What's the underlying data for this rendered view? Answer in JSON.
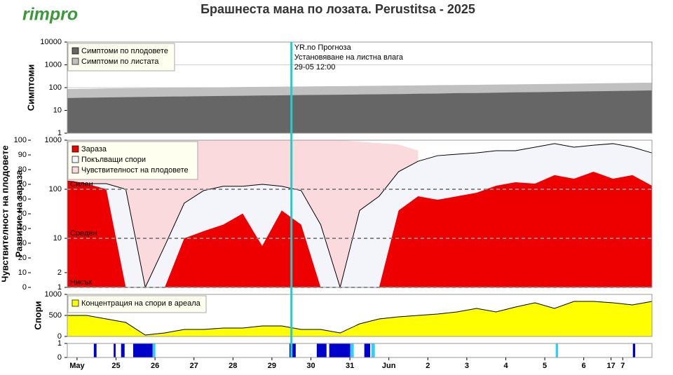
{
  "title": "Брашнеста мана по лозата.  Perustitsa - 2025",
  "logo": "rimpro",
  "x_axis": {
    "x": [
      -0.25,
      0.25,
      0.75,
      1.25,
      1.75,
      2.25,
      2.75,
      3.25,
      3.75,
      4.25,
      4.75,
      5.25,
      5.75,
      6.25,
      6.75,
      7.25,
      7.75,
      8.25,
      8.75,
      9.25,
      9.75,
      10.25,
      10.75,
      11.25,
      11.75,
      12.25,
      12.75,
      13.25,
      13.75,
      14.25,
      14.75
    ],
    "xlim": [
      -0.25,
      14.75
    ],
    "xticks": [
      {
        "value": 0,
        "label": "May"
      },
      {
        "value": 1,
        "label": "25"
      },
      {
        "value": 2,
        "label": "26"
      },
      {
        "value": 3,
        "label": "27"
      },
      {
        "value": 4,
        "label": "28"
      },
      {
        "value": 5,
        "label": "29"
      },
      {
        "value": 6,
        "label": "30"
      },
      {
        "value": 7,
        "label": "31"
      },
      {
        "value": 8,
        "label": "Jun"
      },
      {
        "value": 9,
        "label": "2"
      },
      {
        "value": 10,
        "label": "3"
      },
      {
        "value": 11,
        "label": "4"
      },
      {
        "value": 12,
        "label": "5"
      },
      {
        "value": 13,
        "label": "6"
      },
      {
        "value": 13.7,
        "label": "17"
      },
      {
        "value": 14,
        "label": "7"
      }
    ]
  },
  "forecast": {
    "x": 5.5,
    "color": "#22cccc",
    "labels": [
      "YR.no Прогноза",
      "Установяване на листна влага",
      "29-05 12:00"
    ]
  },
  "chart_data": [
    {
      "type": "area",
      "ylabel": "Симптоми",
      "log": true,
      "ylim": [
        1,
        10000
      ],
      "yticks": [
        1,
        10,
        100,
        1000,
        10000
      ],
      "grid": true,
      "series": [
        {
          "name": "Симптоми по плодовете",
          "color": "#666666",
          "values": [
            35,
            36,
            37,
            38,
            39,
            40,
            41,
            42,
            43,
            44,
            45,
            46,
            47,
            48,
            49,
            50,
            51,
            52,
            54,
            55,
            57,
            58,
            60,
            62,
            63,
            65,
            67,
            69,
            71,
            73,
            75
          ]
        },
        {
          "name": "Симптоми по листата",
          "color": "#c0c0c0",
          "values": [
            87,
            89,
            92,
            94,
            96,
            98,
            100,
            102,
            104,
            106,
            108,
            110,
            112,
            114,
            116,
            118,
            120,
            123,
            125,
            128,
            130,
            133,
            136,
            139,
            142,
            145,
            149,
            153,
            157,
            161,
            165
          ]
        }
      ]
    },
    {
      "type": "area",
      "ylabel": "Развитие на зараза",
      "log": true,
      "ylim": [
        1,
        1000
      ],
      "yticks": [
        1,
        2,
        10,
        100,
        1000
      ],
      "y2label": "Чувствителност на плодовете",
      "y2lim": [
        0,
        100
      ],
      "y2ticks": [
        0,
        10,
        20,
        30,
        40,
        50,
        60,
        70,
        80,
        90,
        100
      ],
      "thresholds": [
        {
          "value": 100,
          "label": "Силен"
        },
        {
          "value": 10,
          "label": "Среден"
        },
        {
          "value": 1,
          "label": "Нисък"
        }
      ],
      "series": [
        {
          "name": "Зараза",
          "color": "#ee0000",
          "values": [
            148,
            130,
            100,
            1,
            1,
            1,
            10,
            14,
            19,
            32,
            7,
            37,
            19,
            1,
            1,
            1,
            1,
            37,
            72,
            61,
            72,
            85,
            118,
            139,
            130,
            194,
            164,
            228,
            164,
            194,
            118
          ]
        },
        {
          "name": "Покълващи спори",
          "color": "#f4f4fb",
          "line": "#000000",
          "values": [
            148,
            130,
            130,
            100,
            1,
            7,
            52,
            94,
            115,
            115,
            126,
            115,
            94,
            19,
            1,
            37,
            72,
            228,
            372,
            484,
            517,
            550,
            610,
            610,
            720,
            850,
            720,
            790,
            850,
            720,
            550
          ]
        },
        {
          "name": "Чувствителност на плодовете",
          "color": "#fadadd",
          "axis": "y2",
          "values": [
            100,
            100,
            100,
            100,
            100,
            100,
            100,
            100,
            100,
            100,
            100,
            100,
            100,
            100,
            100,
            99,
            98,
            97,
            93,
            null,
            null,
            null,
            null,
            null,
            null,
            null,
            null,
            null,
            null,
            null,
            null
          ]
        }
      ]
    },
    {
      "type": "area",
      "ylabel": "Спори",
      "ylim": [
        0,
        1000
      ],
      "yticks": [
        0,
        500,
        1000
      ],
      "series": [
        {
          "name": "Концентрация на спори в ареала",
          "color": "#ffff00",
          "line": "#000000",
          "values": [
            500,
            500,
            417,
            333,
            33,
            83,
            167,
            167,
            200,
            200,
            250,
            250,
            167,
            167,
            83,
            300,
            417,
            467,
            500,
            533,
            583,
            667,
            583,
            700,
            800,
            667,
            833,
            833,
            800,
            750,
            833
          ]
        }
      ]
    },
    {
      "type": "interval",
      "ylim": [
        0,
        1
      ],
      "yticks": [
        0,
        1
      ],
      "series": [
        {
          "color": "#0000cc",
          "intervals": [
            [
              0.43,
              0.5
            ],
            [
              0.94,
              0.99
            ],
            [
              1.13,
              1.22
            ],
            [
              1.44,
              1.94
            ],
            [
              5.45,
              5.61
            ],
            [
              6.15,
              6.4
            ],
            [
              6.47,
              7.01
            ],
            [
              7.37,
              7.52
            ],
            [
              14.26,
              14.32
            ]
          ]
        },
        {
          "color": "#33ccff",
          "intervals": [
            [
              1.94,
              2.01
            ],
            [
              7.01,
              7.1
            ],
            [
              7.55,
              7.64
            ],
            [
              12.28,
              12.34
            ]
          ]
        }
      ]
    }
  ]
}
